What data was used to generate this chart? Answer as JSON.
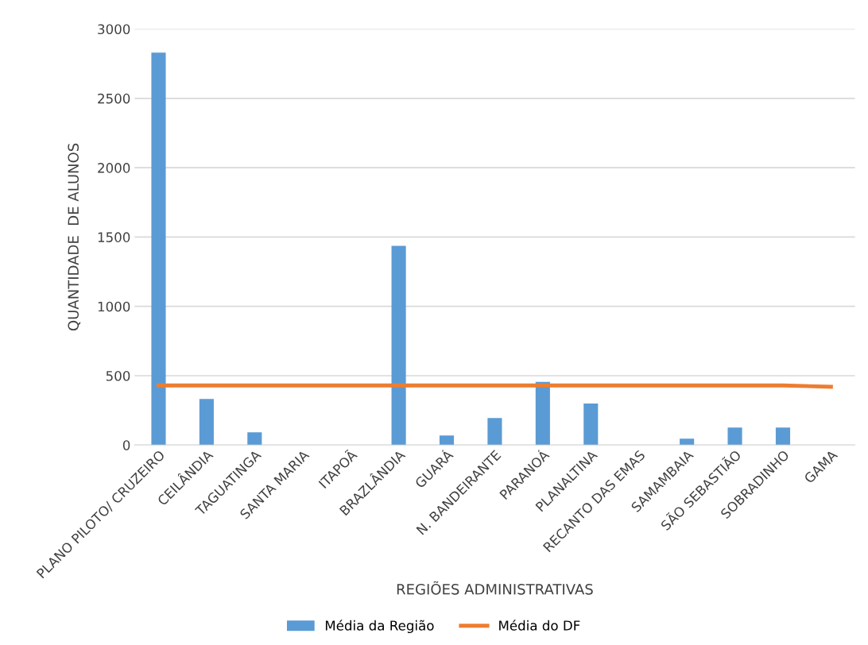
{
  "chart_data": {
    "type": "bar",
    "xlabel": "REGIÕES ADMINISTRATIVAS",
    "ylabel": "QUANTIDADE  DE ALUNOS",
    "categories": [
      "PLANO PILOTO/ CRUZEIRO",
      "CEILÂNDIA",
      "TAGUATINGA",
      "SANTA MARIA",
      "ITAPOÃ",
      "BRAZLÂNDIA",
      "GUARÁ",
      "N. BANDEIRANTE",
      "PARANOÁ",
      "PLANALTINA",
      "RECANTO DAS EMAS",
      "SAMAMBAIA",
      "SÃO SEBASTIÃO",
      "SOBRADINHO",
      "GAMA"
    ],
    "series": [
      {
        "name": "Média da Região",
        "color": "#5b9bd5",
        "values": [
          2830,
          333,
          92,
          0,
          0,
          1437,
          69,
          195,
          455,
          299,
          0,
          46,
          126,
          126,
          0
        ]
      },
      {
        "name": "Média do DF",
        "type": "line",
        "color": "#ed7d31",
        "values": [
          430,
          430,
          430,
          430,
          430,
          430,
          430,
          430,
          430,
          430,
          430,
          430,
          430,
          430,
          420
        ]
      }
    ],
    "ylim": [
      0,
      3000
    ],
    "yticks": [
      0,
      500,
      1000,
      1500,
      2000,
      2500,
      3000
    ],
    "grid": "y",
    "legend": "bottom"
  }
}
